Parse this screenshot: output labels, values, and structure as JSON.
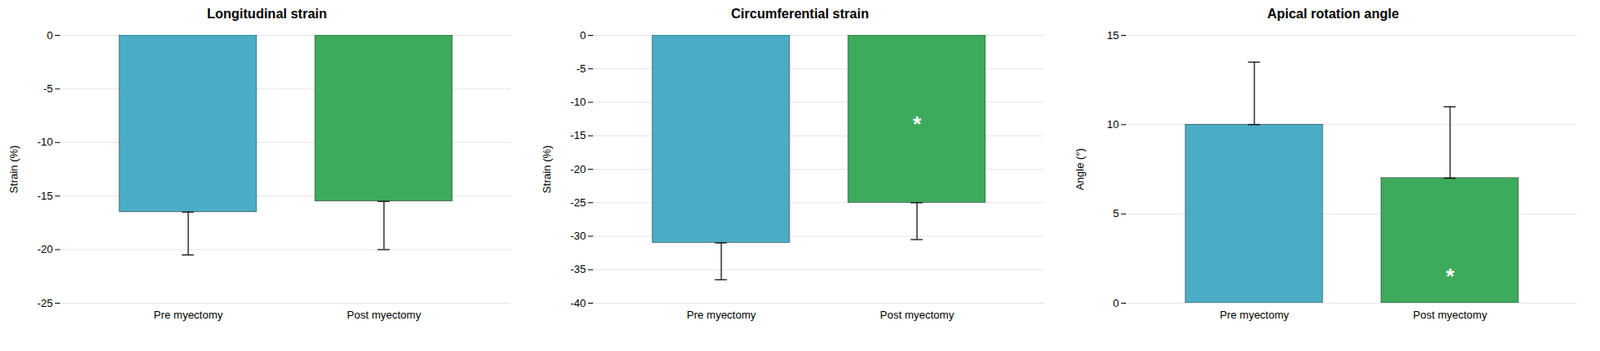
{
  "chart_data": [
    {
      "type": "bar",
      "title": "Longitudinal strain",
      "ylabel": "Strain (%)",
      "categories": [
        "Pre myectomy",
        "Post myectomy"
      ],
      "values": [
        -16.5,
        -15.5
      ],
      "err_down": [
        4.0,
        4.5
      ],
      "err_up": [
        0,
        0
      ],
      "colors": [
        "#4BACC6",
        "#3DAA5C"
      ],
      "ylim": [
        -25,
        0
      ],
      "yticks": [
        0,
        -5,
        -10,
        -15,
        -20,
        -25
      ],
      "grid": true,
      "annotations": []
    },
    {
      "type": "bar",
      "title": "Circumferential strain",
      "ylabel": "Strain (%)",
      "categories": [
        "Pre myectomy",
        "Post myectomy"
      ],
      "values": [
        -31.0,
        -25.0
      ],
      "err_down": [
        5.5,
        5.5
      ],
      "err_up": [
        0,
        0
      ],
      "colors": [
        "#4BACC6",
        "#3DAA5C"
      ],
      "ylim": [
        -40,
        0
      ],
      "yticks": [
        0,
        -5,
        -10,
        -15,
        -20,
        -25,
        -30,
        -35,
        -40
      ],
      "grid": true,
      "annotations": [
        {
          "x": "Post myectomy",
          "y": -12.5,
          "text": "*"
        }
      ]
    },
    {
      "type": "bar",
      "title": "Apical rotation angle",
      "ylabel": "Angle (°)",
      "categories": [
        "Pre myectomy",
        "Post myectomy"
      ],
      "values": [
        10.0,
        7.0
      ],
      "err_down": [
        0,
        0
      ],
      "err_up": [
        3.5,
        4.0
      ],
      "colors": [
        "#4BACC6",
        "#3DAA5C"
      ],
      "ylim": [
        0,
        15
      ],
      "yticks": [
        0,
        5,
        10,
        15
      ],
      "grid": true,
      "annotations": [
        {
          "x": "Post myectomy",
          "y": 1.8,
          "text": "*"
        }
      ]
    }
  ]
}
